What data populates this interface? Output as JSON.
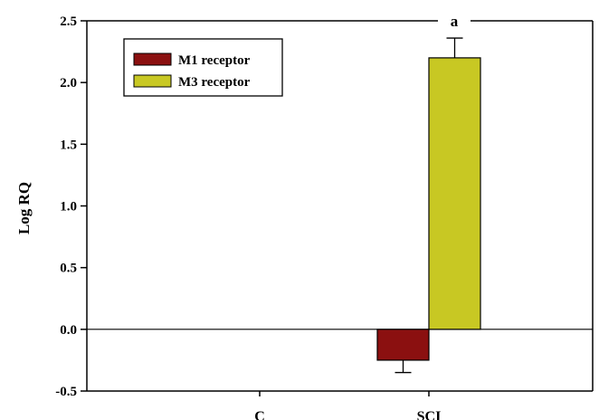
{
  "chart_data": {
    "type": "bar",
    "categories": [
      "C",
      "SCI"
    ],
    "series": [
      {
        "name": "M1 receptor",
        "color": "#8b1010",
        "values": [
          0,
          -0.25
        ],
        "errors": [
          0,
          0.1
        ]
      },
      {
        "name": "M3 receptor",
        "color": "#c8c823",
        "values": [
          0,
          2.2
        ],
        "errors": [
          0,
          0.16
        ]
      }
    ],
    "xlabel": "",
    "ylabel": "Log RQ",
    "ylim": [
      -0.5,
      2.5
    ],
    "yticks": [
      "-0.5",
      "0.0",
      "0.5",
      "1.0",
      "1.5",
      "2.0",
      "2.5"
    ],
    "zero_line": true,
    "grid": false,
    "legend_position": "top-left",
    "annotation": {
      "text": "a",
      "category": "SCI",
      "placement": "top-axis"
    }
  }
}
